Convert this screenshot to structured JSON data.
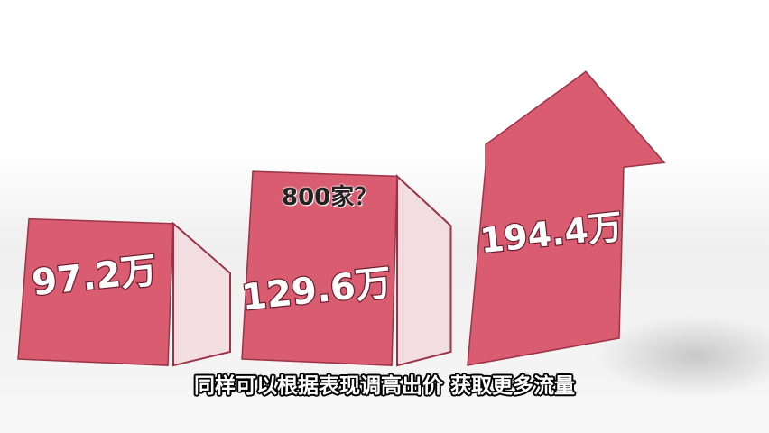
{
  "colors": {
    "bar": "#d95c70",
    "bar_side": "#f2dde1",
    "bar_edge": "#9c3346",
    "floor": "#ebebeb"
  },
  "chart_data": {
    "type": "bar",
    "categories": [
      "",
      "",
      ""
    ],
    "values": [
      97.2,
      129.6,
      194.4
    ],
    "value_labels": [
      "97.2万",
      "129.6万",
      "194.4万"
    ],
    "last_bar_shape": "arrow-up",
    "ylim": [
      0,
      210
    ],
    "grid": false,
    "legend": "none"
  },
  "annotation": "800家？",
  "subtitle": "同样可以根据表现调高出价 获取更多流量"
}
